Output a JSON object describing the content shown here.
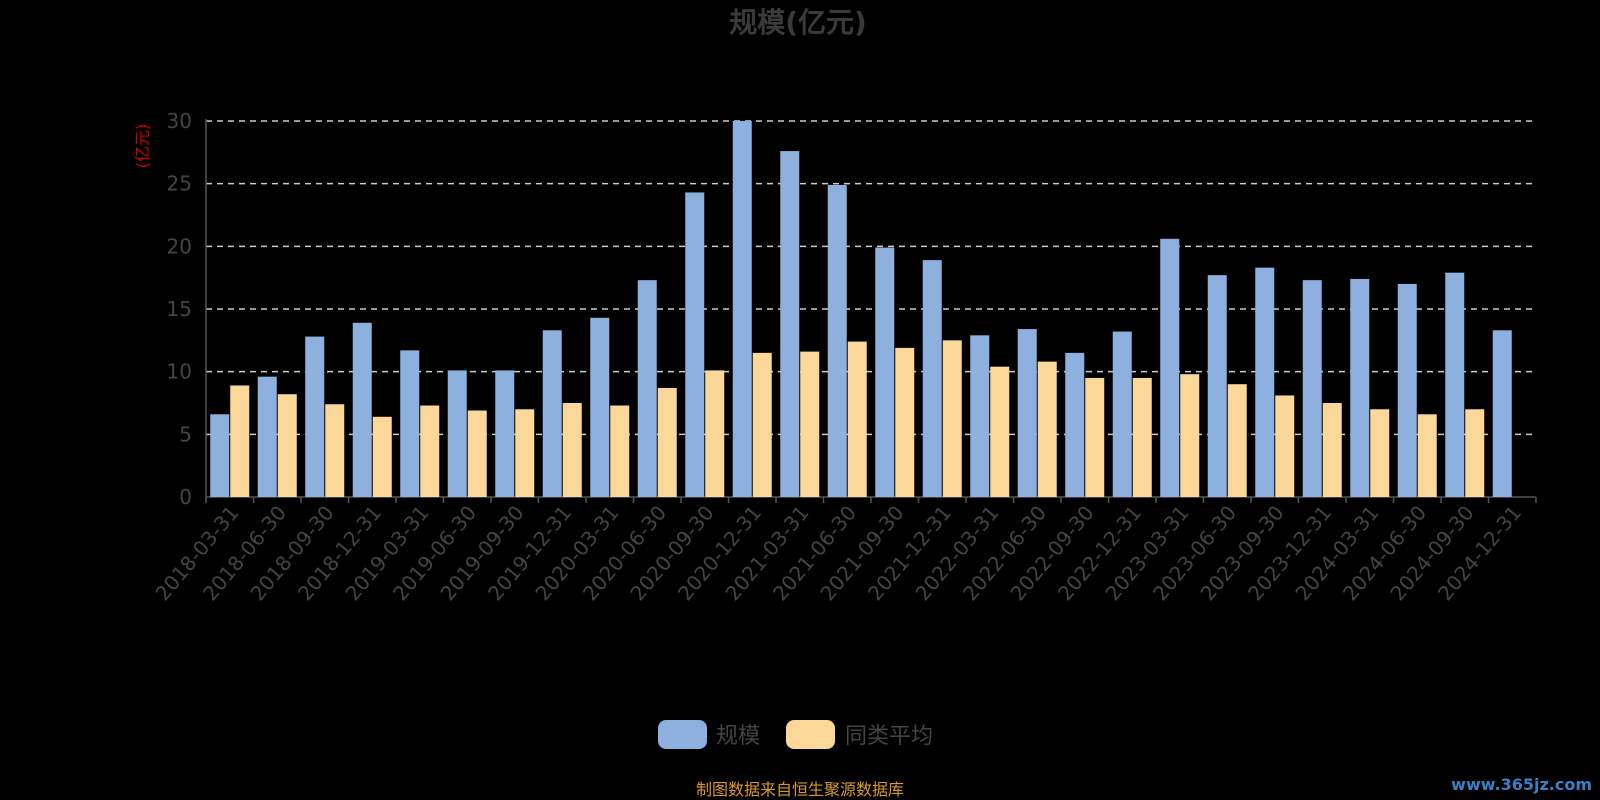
{
  "chart_data": {
    "type": "bar",
    "title": "规模(亿元)",
    "ylabel": "(亿元)",
    "ylim": [
      0,
      30
    ],
    "yticks": [
      0,
      5,
      10,
      15,
      20,
      25,
      30
    ],
    "grid": true,
    "legend_position": "bottom-center",
    "categories": [
      "2018-03-31",
      "2018-06-30",
      "2018-09-30",
      "2018-12-31",
      "2019-03-31",
      "2019-06-30",
      "2019-09-30",
      "2019-12-31",
      "2020-03-31",
      "2020-06-30",
      "2020-09-30",
      "2020-12-31",
      "2021-03-31",
      "2021-06-30",
      "2021-09-30",
      "2021-12-31",
      "2022-03-31",
      "2022-06-30",
      "2022-09-30",
      "2022-12-31",
      "2023-03-31",
      "2023-06-30",
      "2023-09-30",
      "2023-12-31",
      "2024-03-31",
      "2024-06-30",
      "2024-09-30",
      "2024-12-31"
    ],
    "series": [
      {
        "name": "规模",
        "color": "#8eb0de",
        "values": [
          6.6,
          9.6,
          12.8,
          13.9,
          11.7,
          10.1,
          10.1,
          13.3,
          14.3,
          17.3,
          24.3,
          30.0,
          27.6,
          24.9,
          19.9,
          18.9,
          12.9,
          13.4,
          11.5,
          13.2,
          20.6,
          17.7,
          18.3,
          17.3,
          17.4,
          17.0,
          17.9,
          13.3
        ]
      },
      {
        "name": "同类平均",
        "color": "#fcd79a",
        "values": [
          8.9,
          8.2,
          7.4,
          6.4,
          7.3,
          6.9,
          7.0,
          7.5,
          7.3,
          8.7,
          10.1,
          11.5,
          11.6,
          12.4,
          11.9,
          12.5,
          10.4,
          10.8,
          9.5,
          9.5,
          9.8,
          9.0,
          8.1,
          7.5,
          7.0,
          6.6,
          7.0,
          null
        ]
      }
    ],
    "source": "制图数据来自恒生聚源数据库",
    "watermark": "www.365jz.com",
    "colors": {
      "background": "#000000",
      "grid": "#cccccc",
      "axis": "#555555",
      "text": "#444444",
      "unit": "#d40000",
      "source": "#d79a2a"
    }
  }
}
